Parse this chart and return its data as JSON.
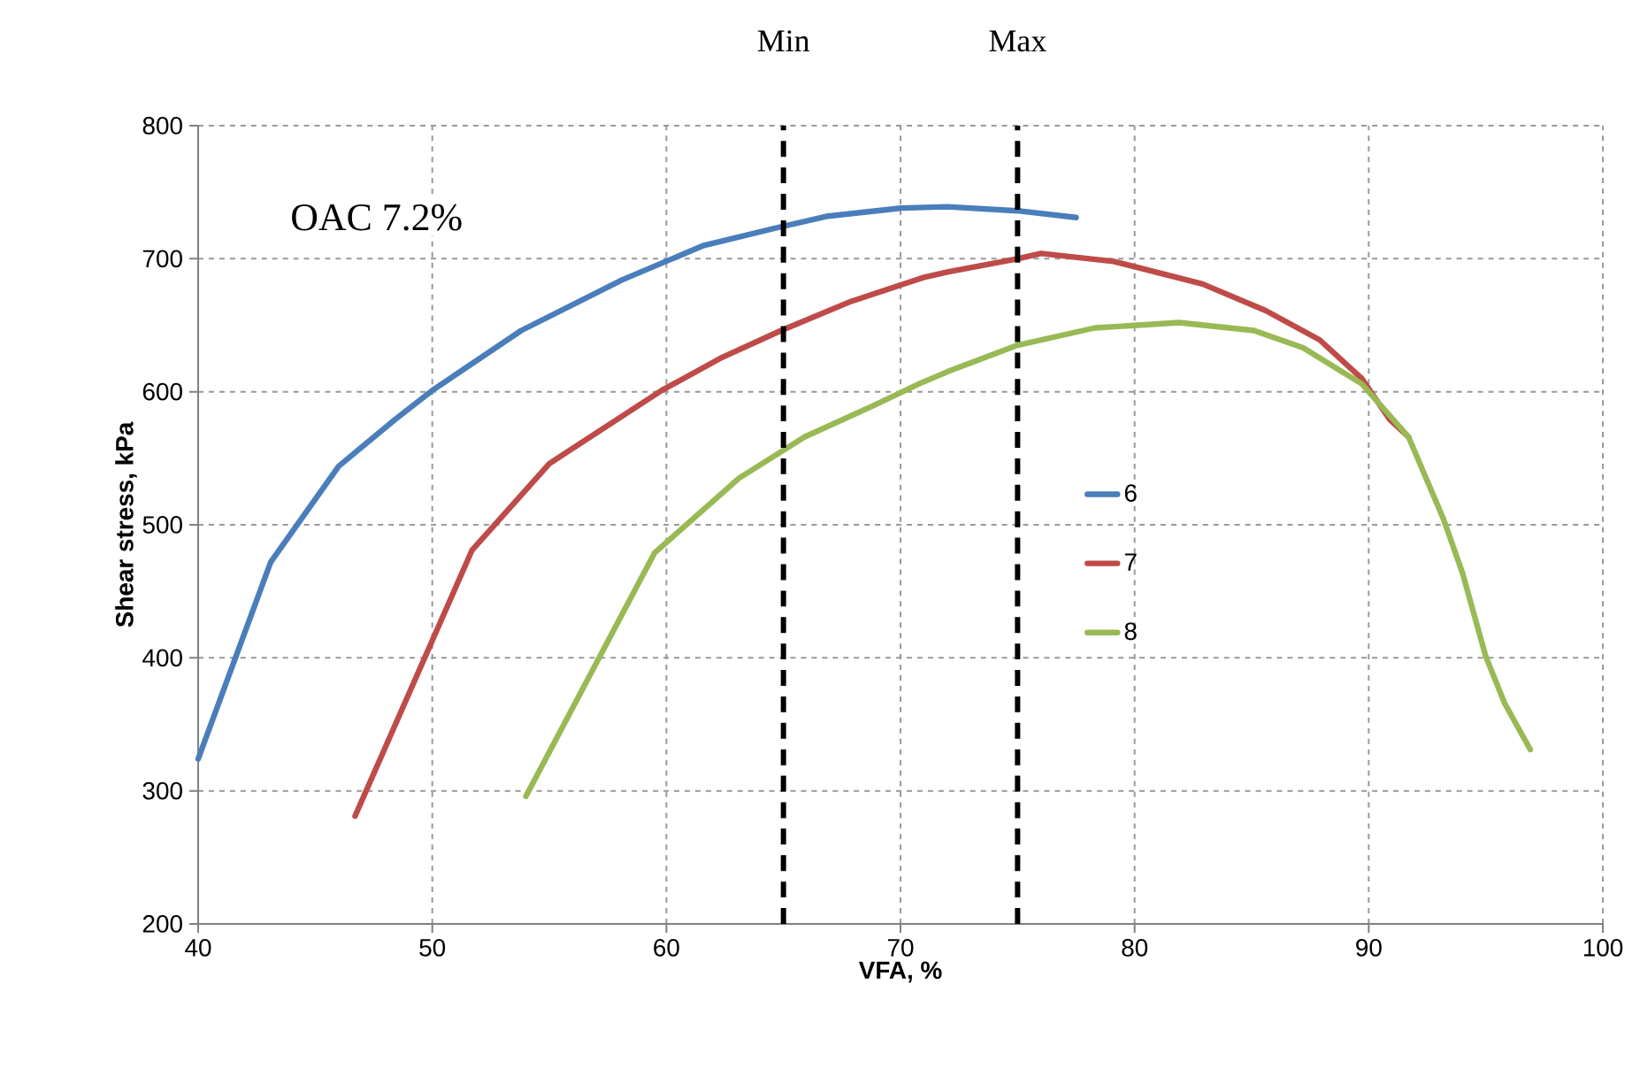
{
  "chart_data": {
    "type": "line",
    "xlabel": "VFA, %",
    "ylabel": "Shear stress, kPa",
    "annotations": [
      "OAC 7.2%"
    ],
    "xlim": [
      40,
      100
    ],
    "xticks": [
      40,
      50,
      60,
      70,
      80,
      90,
      100
    ],
    "ylim": [
      200,
      800
    ],
    "yticks": [
      200,
      300,
      400,
      500,
      600,
      700,
      800
    ],
    "grid": true,
    "legend": "right",
    "line_style": "solid",
    "marker": "none",
    "ref_lines": [
      {
        "axis": "x",
        "value": 65,
        "label": "Min",
        "color": "#000000",
        "line_style": "dashed"
      },
      {
        "axis": "x",
        "value": 75,
        "label": "Max",
        "color": "#000000",
        "line_style": "dashed"
      }
    ],
    "series": [
      {
        "name": "6",
        "color": "#4a7ebb",
        "x": [
          40,
          43.1,
          46.0,
          48.4,
          50.0,
          53.8,
          58.1,
          61.6,
          64.9,
          66.9,
          70,
          72,
          75,
          77.5
        ],
        "values": [
          324,
          472,
          544,
          579,
          601,
          646,
          684,
          710,
          724,
          732,
          738,
          739,
          736,
          731
        ]
      },
      {
        "name": "7",
        "color": "#be4b48",
        "x": [
          46.7,
          51.7,
          55,
          59.8,
          62.4,
          64.9,
          67.9,
          71,
          72,
          75,
          76,
          79.1,
          82.9,
          85.6,
          87.9,
          89.7,
          90.9,
          91.7
        ],
        "values": [
          281,
          481,
          546,
          601,
          626,
          646,
          668,
          686,
          690,
          700,
          704,
          698,
          681,
          661,
          639,
          610,
          579,
          566
        ]
      },
      {
        "name": "8",
        "color": "#98b954",
        "x": [
          54,
          59.5,
          63.1,
          65.9,
          68.9,
          70.8,
          72,
          75,
          78.3,
          81.9,
          85.1,
          87.2,
          89.7,
          91.7,
          93.2,
          94.0,
          95.0,
          95.8,
          96.9
        ],
        "values": [
          296,
          479,
          535,
          566,
          590,
          606,
          615,
          635,
          648,
          652,
          646,
          633,
          606,
          566,
          504,
          464,
          401,
          366,
          331
        ]
      }
    ]
  }
}
